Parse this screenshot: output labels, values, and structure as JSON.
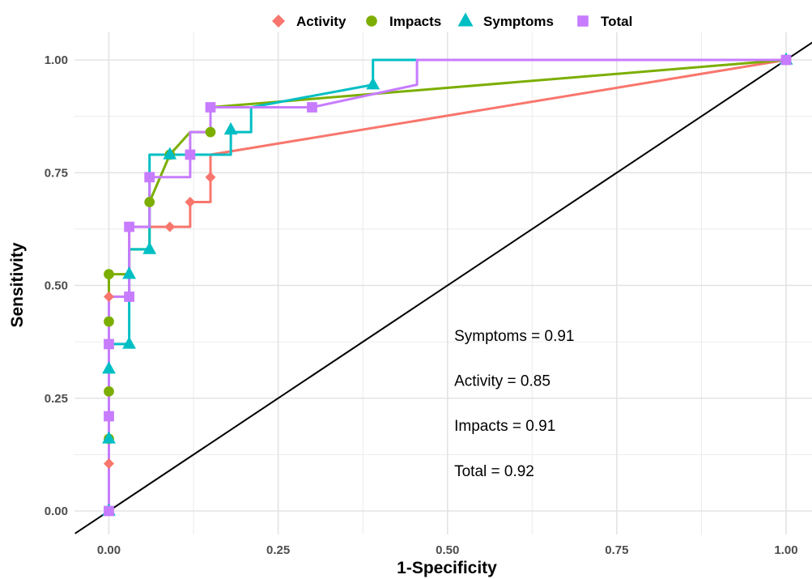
{
  "chart_data": {
    "type": "line",
    "title": "",
    "xlabel": "1-Specificity",
    "ylabel": "Sensitivity",
    "xlim": [
      -0.05,
      1.04
    ],
    "ylim": [
      -0.05,
      1.05
    ],
    "xticks": [
      0,
      0.25,
      0.5,
      0.75,
      1
    ],
    "xtick_labels": [
      "0.00",
      "0.25",
      "0.50",
      "0.75",
      "1.00"
    ],
    "yticks": [
      0,
      0.25,
      0.5,
      0.75,
      1
    ],
    "ytick_labels": [
      "0.00",
      "0.25",
      "0.50",
      "0.75",
      "1.00"
    ],
    "grid": true,
    "legend_position": "top",
    "reference_line": {
      "from": [
        -0.05,
        -0.05
      ],
      "to": [
        1.04,
        1.04
      ],
      "color": "#000000"
    },
    "series": [
      {
        "name": "Activity",
        "color": "#F8766D",
        "marker": "diamond",
        "line_x": [
          0,
          0,
          0.03,
          0.03,
          0.09,
          0.12,
          0.12,
          0.15,
          0.15,
          0.15,
          1
        ],
        "line_y": [
          0,
          0.475,
          0.475,
          0.63,
          0.63,
          0.63,
          0.685,
          0.685,
          0.74,
          0.79,
          1
        ],
        "points_x": [
          0,
          0,
          0,
          0.09,
          0.12,
          0.15,
          1
        ],
        "points_y": [
          0.105,
          0.16,
          0.475,
          0.63,
          0.685,
          0.74,
          1
        ]
      },
      {
        "name": "Impacts",
        "color": "#7CAE00",
        "marker": "circle",
        "line_x": [
          0,
          0,
          0.03,
          0.03,
          0.06,
          0.06,
          0.09,
          0.12,
          0.12,
          0.15,
          0.15,
          1
        ],
        "line_y": [
          0,
          0.525,
          0.525,
          0.58,
          0.58,
          0.685,
          0.79,
          0.84,
          0.84,
          0.84,
          0.895,
          1
        ],
        "points_x": [
          0,
          0,
          0,
          0,
          0.06,
          0.09,
          0.15,
          1
        ],
        "points_y": [
          0.16,
          0.265,
          0.42,
          0.525,
          0.685,
          0.79,
          0.84,
          1
        ]
      },
      {
        "name": "Symptoms",
        "color": "#00BFC4",
        "marker": "triangle",
        "line_x": [
          0,
          0,
          0.03,
          0.03,
          0.06,
          0.06,
          0.18,
          0.18,
          0.21,
          0.21,
          0.39,
          0.39,
          1
        ],
        "line_y": [
          0,
          0.37,
          0.37,
          0.58,
          0.58,
          0.79,
          0.79,
          0.84,
          0.84,
          0.895,
          0.945,
          1,
          1
        ],
        "points_x": [
          0,
          0,
          0,
          0.03,
          0.03,
          0.06,
          0.09,
          0.18,
          0.39,
          1
        ],
        "points_y": [
          0,
          0.16,
          0.315,
          0.37,
          0.525,
          0.58,
          0.79,
          0.845,
          0.945,
          1
        ]
      },
      {
        "name": "Total",
        "color": "#C77CFF",
        "marker": "square",
        "line_x": [
          0,
          0,
          0.03,
          0.03,
          0.06,
          0.06,
          0.12,
          0.12,
          0.15,
          0.15,
          0.3,
          0.455,
          0.455,
          1
        ],
        "line_y": [
          0,
          0.475,
          0.475,
          0.63,
          0.63,
          0.74,
          0.74,
          0.84,
          0.84,
          0.895,
          0.895,
          0.945,
          1,
          1
        ],
        "points_x": [
          0,
          0,
          0,
          0.03,
          0.03,
          0.06,
          0.12,
          0.15,
          0.3,
          1
        ],
        "points_y": [
          0,
          0.21,
          0.37,
          0.475,
          0.63,
          0.74,
          0.79,
          0.895,
          0.895,
          1
        ]
      }
    ],
    "annotations": [
      {
        "text": "Symptoms = 0.91",
        "x": 0.51,
        "y": 0.39
      },
      {
        "text": "Activity = 0.85",
        "x": 0.51,
        "y": 0.29
      },
      {
        "text": "Impacts = 0.91",
        "x": 0.51,
        "y": 0.19
      },
      {
        "text": "Total = 0.92",
        "x": 0.51,
        "y": 0.09
      }
    ]
  }
}
